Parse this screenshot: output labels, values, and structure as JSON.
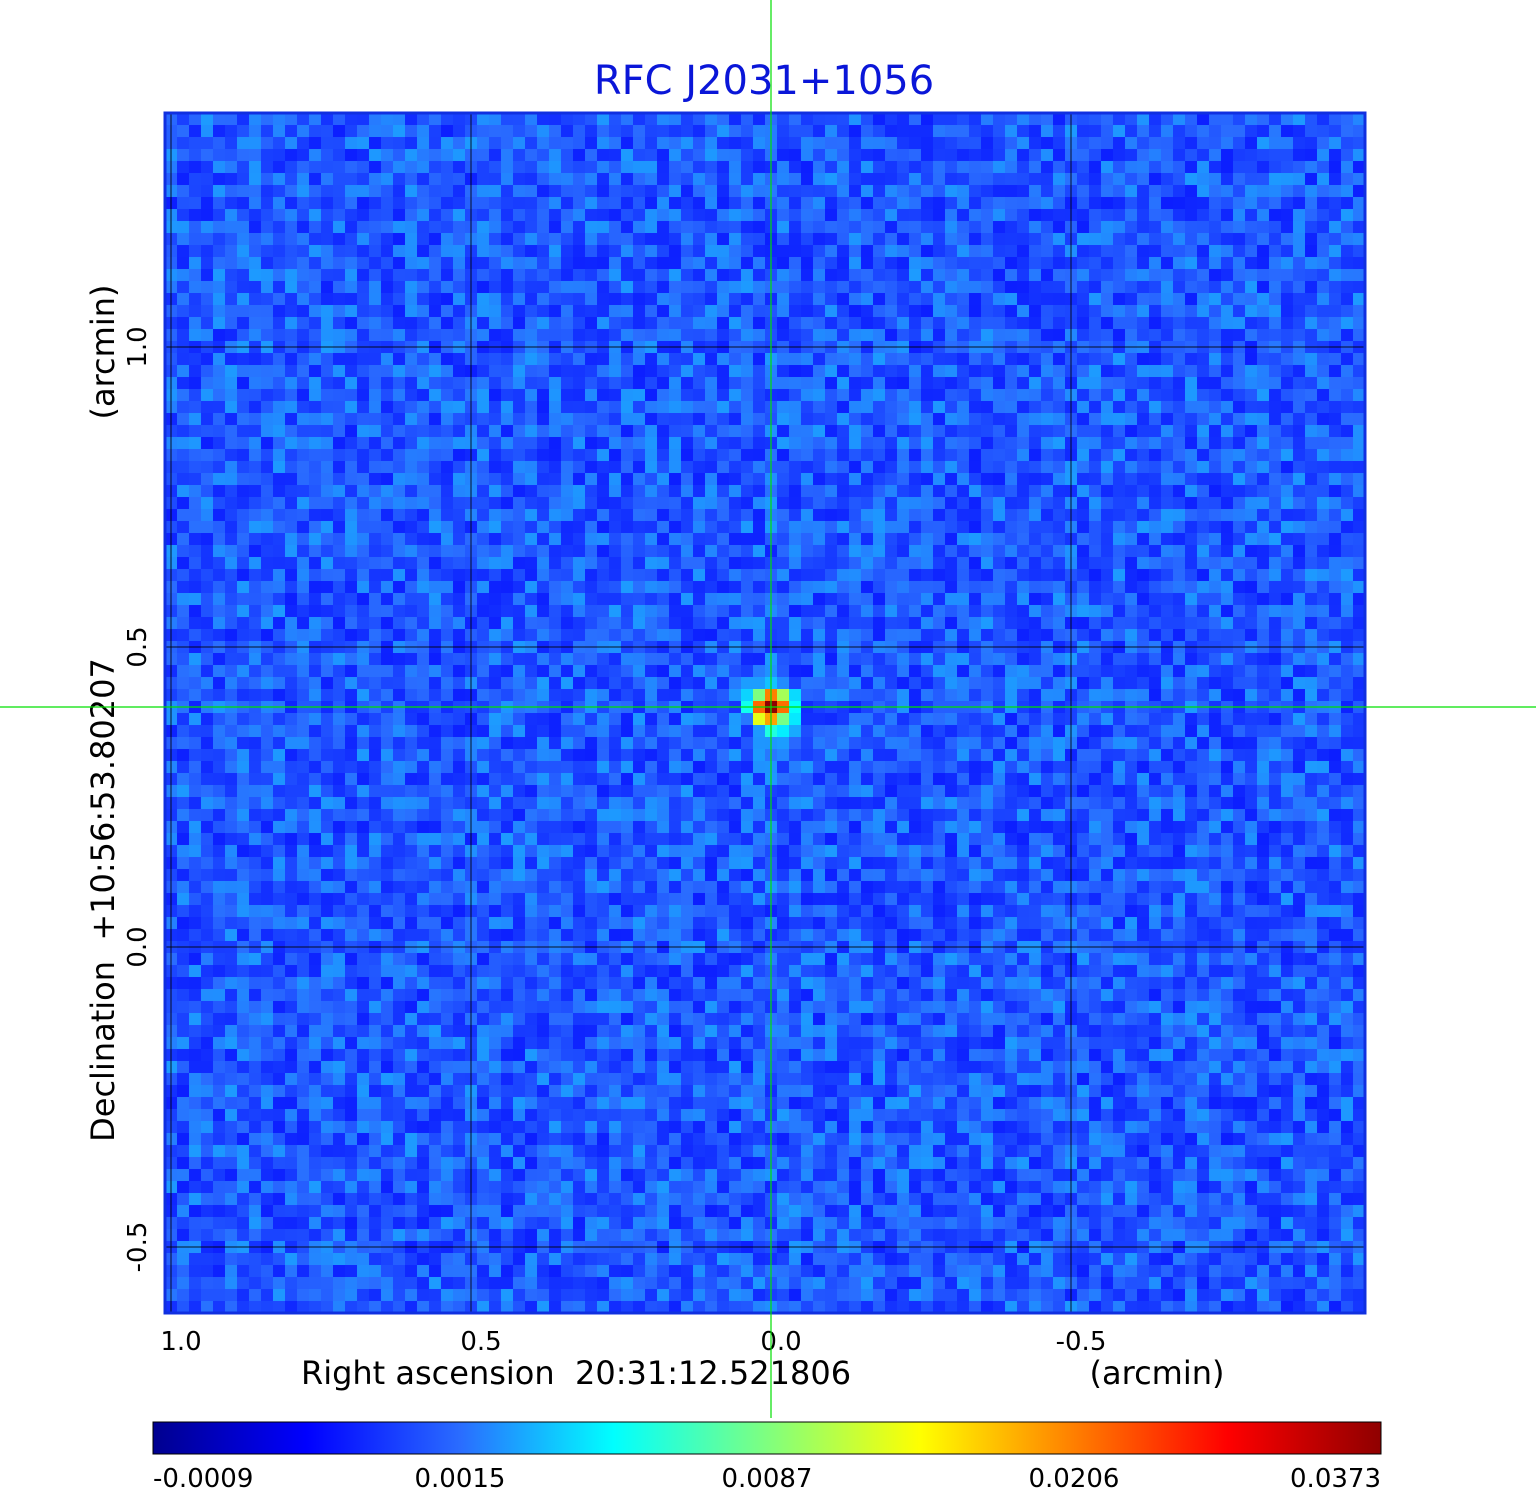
{
  "chart_data": {
    "type": "heatmap",
    "title": "RFC J2031+1056",
    "title_color": "#0a16d8",
    "xlabel": "Right ascension  20:31:12.521806",
    "xunit": "(arcmin)",
    "ylabel": "Declination  +10:56:53.80207",
    "yunit": "(arcmin)",
    "xlim": [
      1.01,
      -0.99
    ],
    "ylim": [
      -0.61,
      1.39
    ],
    "x_ticks": [
      1.0,
      0.5,
      0.0,
      -0.5
    ],
    "x_tick_labels": [
      "1.0",
      "0.5",
      "0.0",
      "-0.5"
    ],
    "y_ticks": [
      1.0,
      0.5,
      0.0,
      -0.5
    ],
    "y_tick_labels": [
      "1.0",
      "0.5",
      "0.0",
      "-0.5"
    ],
    "grid": true,
    "crosshair": [
      0.0,
      0.4,
      "#00e000"
    ],
    "source_peak": {
      "x": 0.0,
      "y": 0.4,
      "value": 0.0373
    },
    "background_level": 0.0,
    "colorbar": {
      "labels": [
        "-0.0009",
        "0.0015",
        "0.0087",
        "0.0206",
        "0.0373"
      ],
      "stops": [
        "#00008f",
        "#0000ff",
        "#2a6cff",
        "#00ffff",
        "#7fff7f",
        "#ffff00",
        "#ff7f00",
        "#ff0000",
        "#8f0000"
      ]
    }
  }
}
